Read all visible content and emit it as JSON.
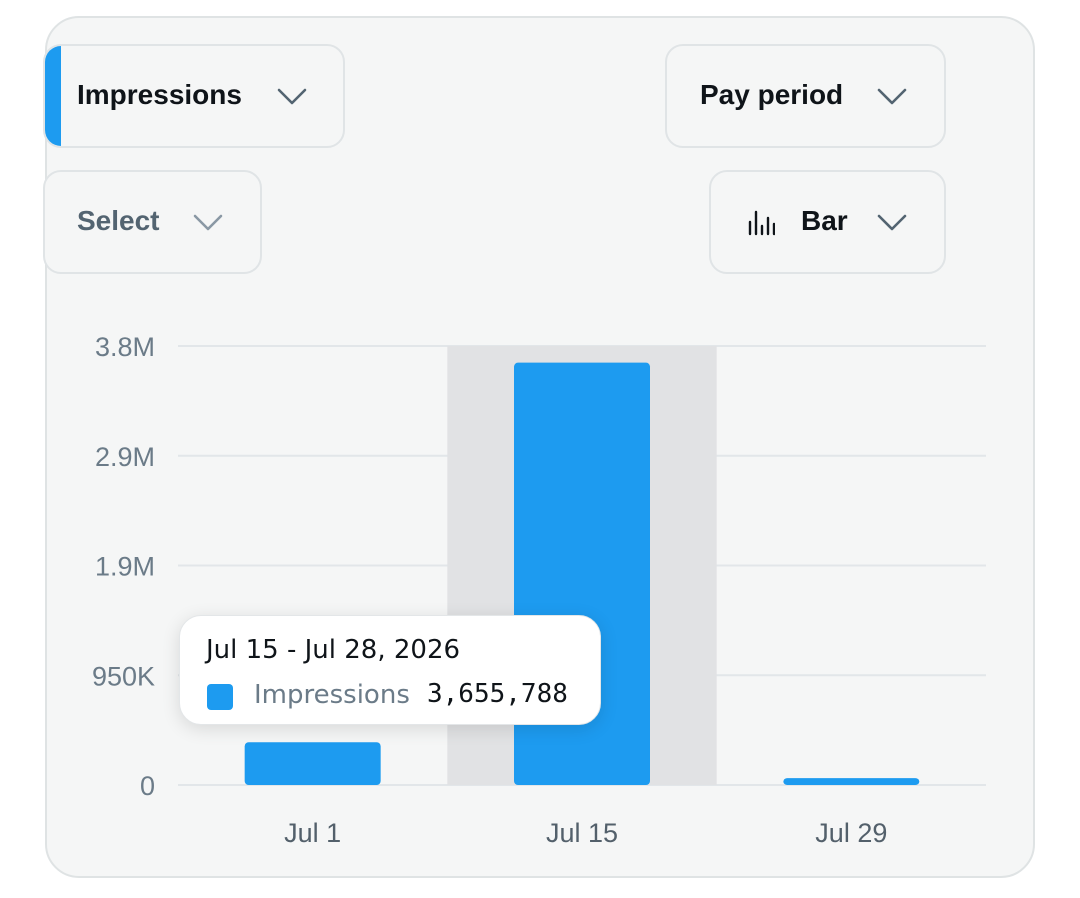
{
  "controls": {
    "metric": {
      "label": "Impressions",
      "accent_color": "#1d9bf0"
    },
    "period": {
      "label": "Pay period"
    },
    "compare": {
      "label": "Select"
    },
    "chart_type": {
      "label": "Bar",
      "icon": "bar-chart-icon"
    },
    "chevron_icon": "chevron-down-icon"
  },
  "tooltip": {
    "title": "Jul 15 - Jul 28, 2026",
    "series_name": "Impressions",
    "value_text": "3,655,788",
    "swatch_color": "#1d9bf0"
  },
  "chart_data": {
    "type": "bar",
    "categories": [
      "Jul 1",
      "Jul 15",
      "Jul 29"
    ],
    "series": [
      {
        "name": "Impressions",
        "values": [
          370000,
          3655788,
          60000
        ],
        "color": "#1d9bf0"
      }
    ],
    "y_ticks": [
      0,
      950000,
      1900000,
      2850000,
      3800000
    ],
    "y_tick_labels": [
      "0",
      "950K",
      "1.9M",
      "2.9M",
      "3.8M"
    ],
    "ylim": [
      0,
      3800000
    ],
    "grid": true,
    "highlighted_category": "Jul 15",
    "highlight_color": "#e1e2e4"
  }
}
